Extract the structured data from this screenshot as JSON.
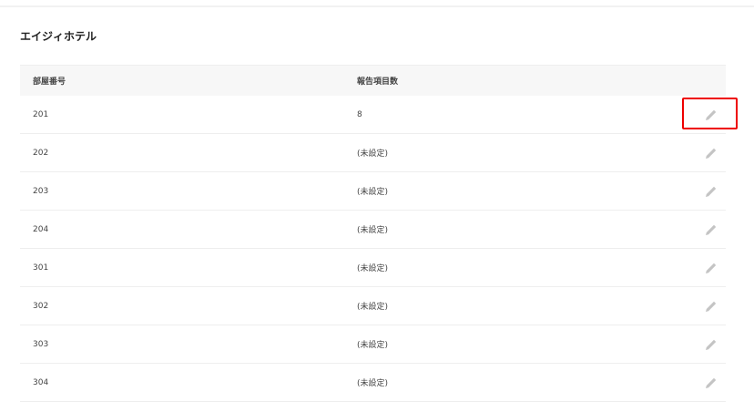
{
  "hotel_name": "エイジィホテル",
  "table": {
    "headers": [
      "部屋番号",
      "報告項目数"
    ],
    "rows": [
      {
        "room": "201",
        "count": "8"
      },
      {
        "room": "202",
        "count": "(未設定)"
      },
      {
        "room": "203",
        "count": "(未設定)"
      },
      {
        "room": "204",
        "count": "(未設定)"
      },
      {
        "room": "301",
        "count": "(未設定)"
      },
      {
        "room": "302",
        "count": "(未設定)"
      },
      {
        "room": "303",
        "count": "(未設定)"
      },
      {
        "room": "304",
        "count": "(未設定)"
      }
    ]
  },
  "icons": {
    "edit": "pencil-icon"
  },
  "colors": {
    "highlight": "#e00000",
    "icon": "#c4c4c4"
  }
}
